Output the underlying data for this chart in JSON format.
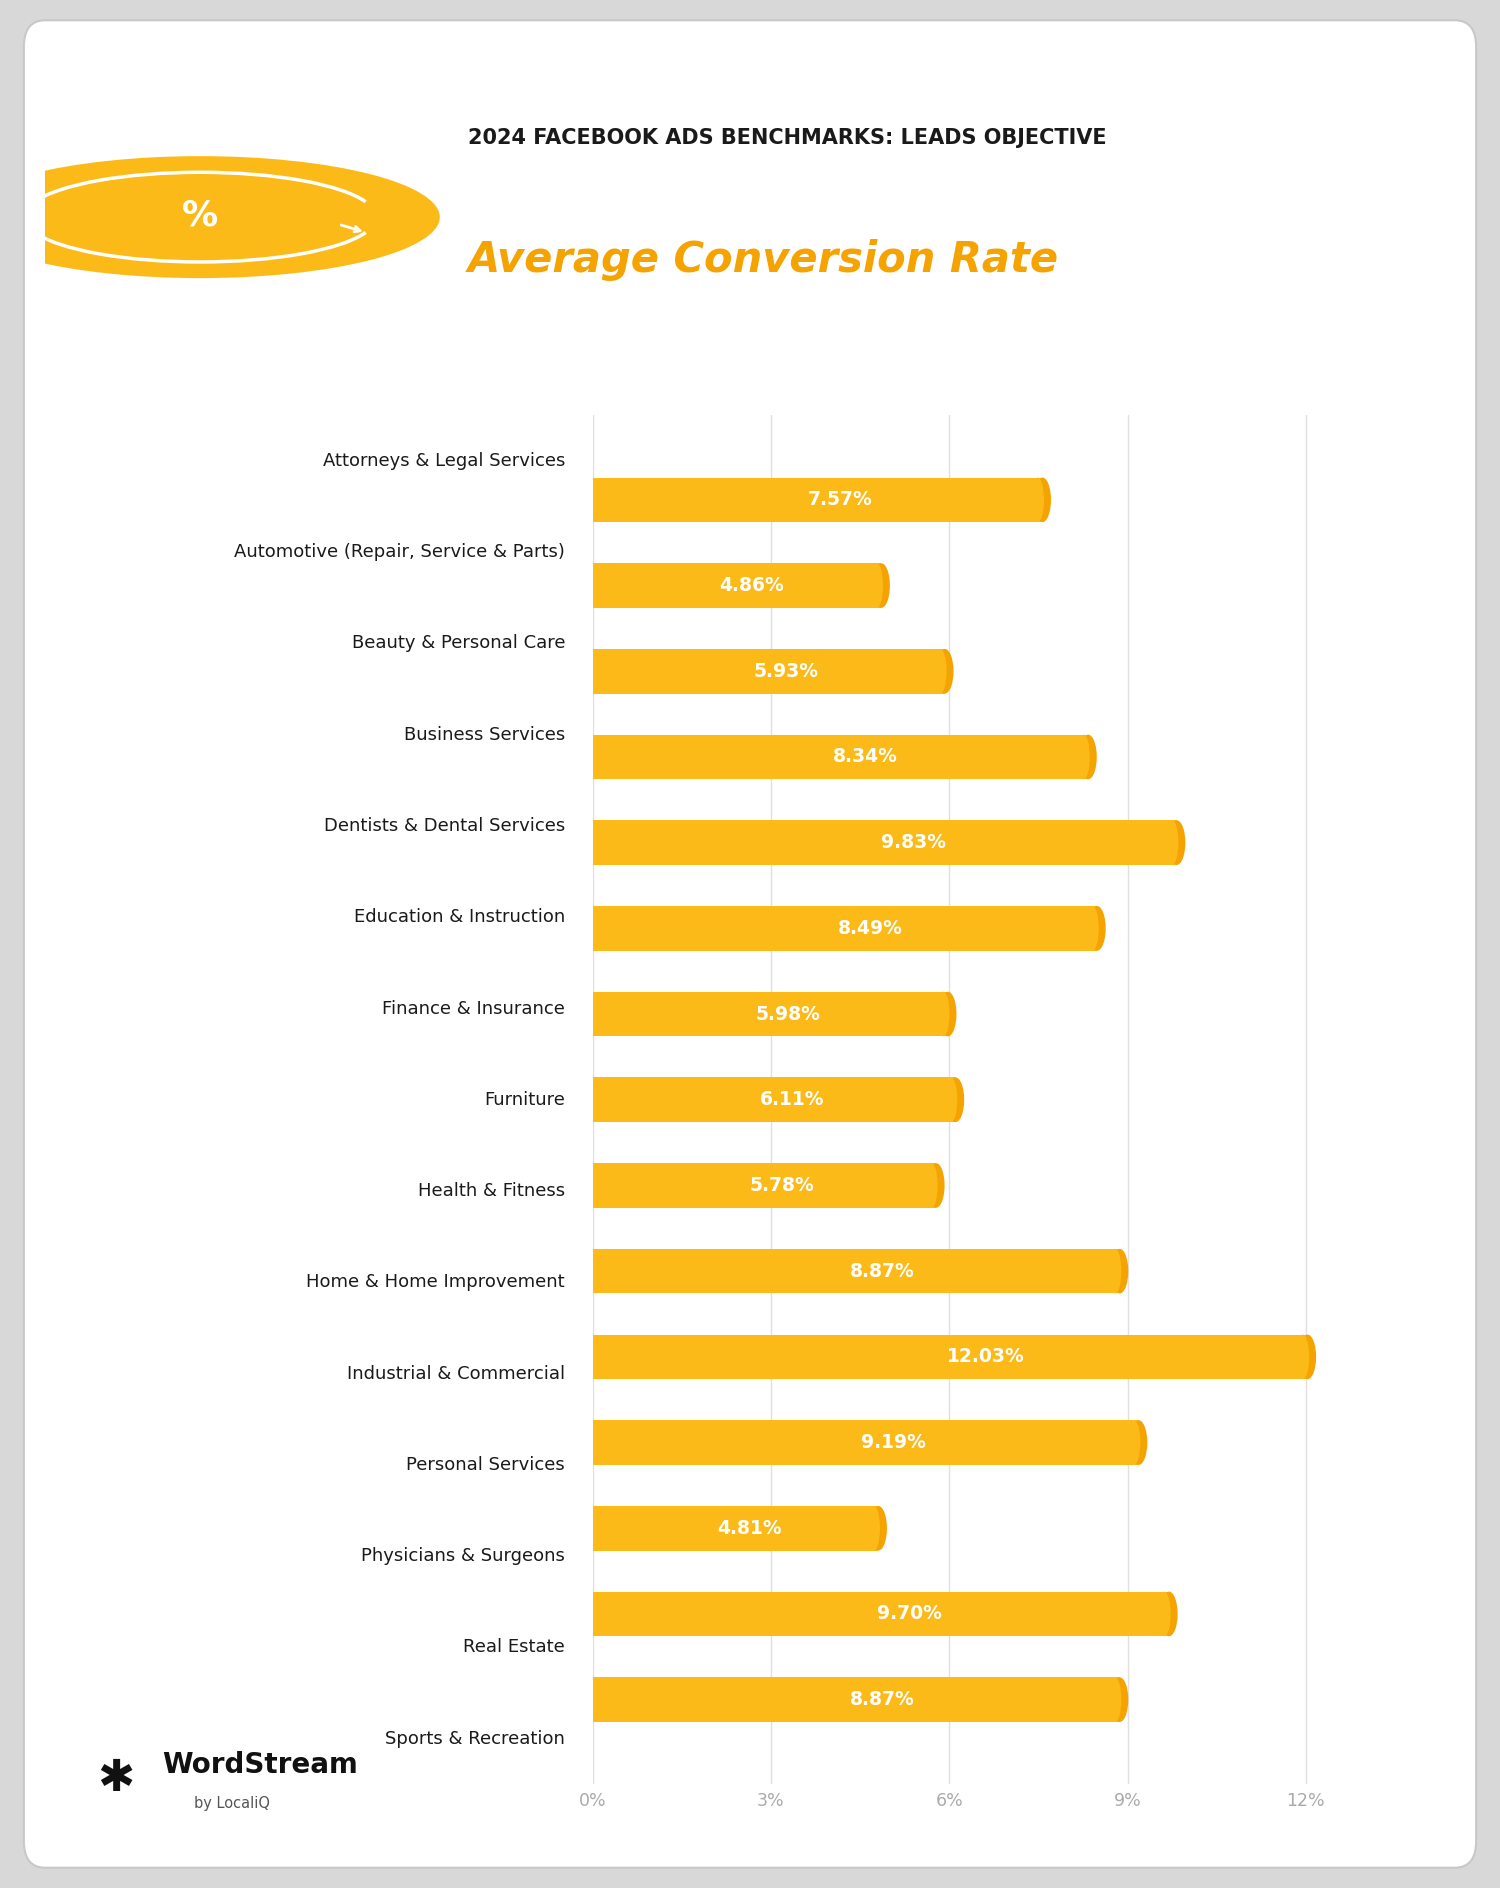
{
  "title_line1": "2024 FACEBOOK ADS BENCHMARKS: LEADS OBJECTIVE",
  "title_line2": "Average Conversion Rate",
  "categories": [
    "Attorneys & Legal Services",
    "Automotive (Repair, Service & Parts)",
    "Beauty & Personal Care",
    "Business Services",
    "Dentists & Dental Services",
    "Education & Instruction",
    "Finance & Insurance",
    "Furniture",
    "Health & Fitness",
    "Home & Home Improvement",
    "Industrial & Commercial",
    "Personal Services",
    "Physicians & Surgeons",
    "Real Estate",
    "Sports & Recreation"
  ],
  "values": [
    7.57,
    4.86,
    5.93,
    8.34,
    9.83,
    8.49,
    5.98,
    6.11,
    5.78,
    8.87,
    12.03,
    9.19,
    4.81,
    9.7,
    8.87
  ],
  "bar_color": "#FBBA18",
  "bar_tip_color": "#F5A300",
  "text_color": "#FFFFFF",
  "title1_color": "#1a1a1a",
  "title2_color": "#F5A300",
  "background_color": "#FFFFFF",
  "outer_bg": "#D8D8D8",
  "grid_color": "#E0E0E0",
  "label_color": "#1a1a1a",
  "tick_color": "#AAAAAA",
  "xlim": [
    0,
    13.5
  ],
  "xticks": [
    0,
    3,
    6,
    9,
    12
  ],
  "xtick_labels": [
    "0%",
    "3%",
    "6%",
    "9%",
    "12%"
  ],
  "bar_height": 0.52,
  "figsize": [
    15.0,
    18.88
  ],
  "dpi": 100
}
